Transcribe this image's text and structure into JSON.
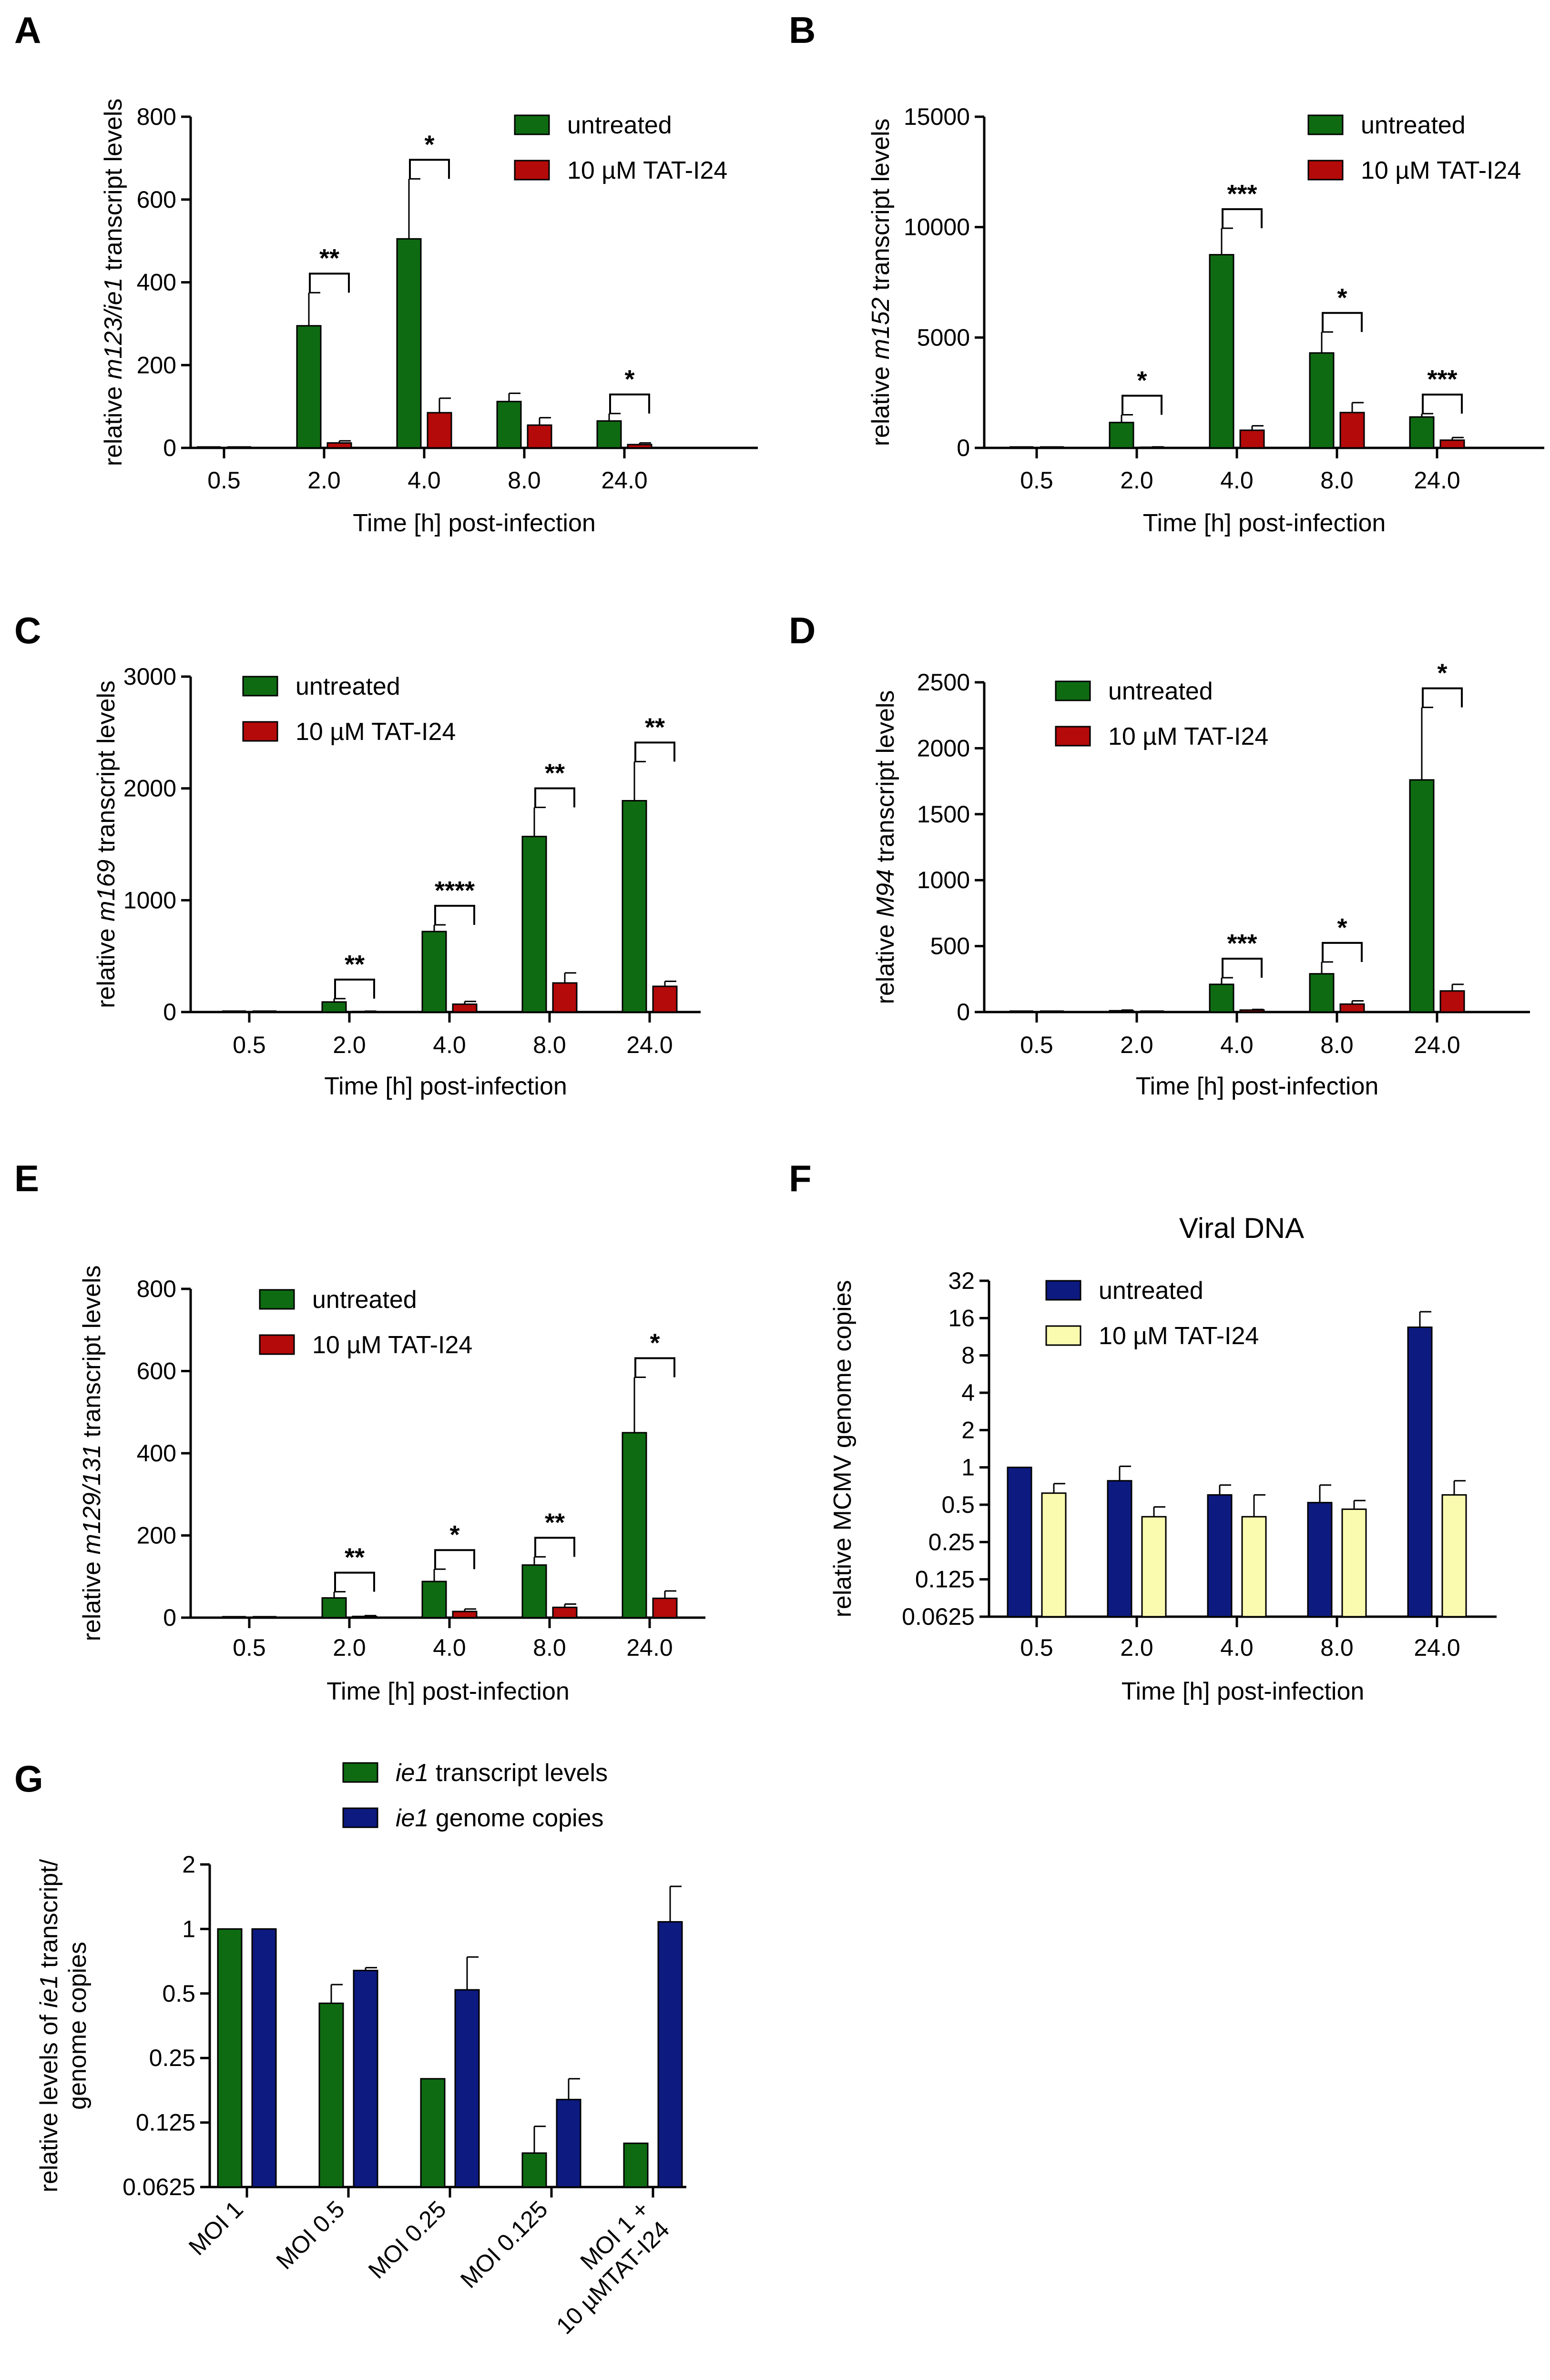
{
  "colors": {
    "untreated_green": "#0f6b12",
    "tat_red": "#b40a0a",
    "navy": "#0d1a80",
    "pale_yellow": "#fbfbb0",
    "axis": "#000000"
  },
  "chart_data": [
    {
      "panel": "A",
      "type": "bar",
      "title": "",
      "ylabel": {
        "pre": "relative ",
        "italic": "m123/ie1",
        "post": " transcript levels"
      },
      "xlabel": "Time [h] post-infection",
      "categories": [
        "0.5",
        "2.0",
        "4.0",
        "8.0",
        "24.0"
      ],
      "yscale": "linear",
      "ylim": [
        0,
        800
      ],
      "yticks": [
        "0",
        "200",
        "400",
        "600",
        "800"
      ],
      "legend": [
        "untreated",
        "10 µM TAT-I24"
      ],
      "series": [
        {
          "name": "untreated",
          "values": [
            0,
            295,
            505,
            112,
            65
          ],
          "errors": [
            0,
            80,
            145,
            20,
            18
          ]
        },
        {
          "name": "10 µM TAT-I24",
          "values": [
            0,
            12,
            85,
            55,
            8
          ],
          "errors": [
            0,
            5,
            35,
            18,
            4
          ]
        }
      ],
      "significance": [
        {
          "category": "2.0",
          "label": "**"
        },
        {
          "category": "4.0",
          "label": "*"
        },
        {
          "category": "24.0",
          "label": "*"
        }
      ]
    },
    {
      "panel": "B",
      "type": "bar",
      "title": "",
      "ylabel": {
        "pre": "relative ",
        "italic": "m152",
        "post": " transcript levels"
      },
      "xlabel": "Time [h] post-infection",
      "categories": [
        "0.5",
        "2.0",
        "4.0",
        "8.0",
        "24.0"
      ],
      "yscale": "linear",
      "ylim": [
        0,
        15000
      ],
      "yticks": [
        "0",
        "5000",
        "10000",
        "15000"
      ],
      "legend": [
        "untreated",
        "10 µM TAT-I24"
      ],
      "series": [
        {
          "name": "untreated",
          "values": [
            0,
            1150,
            8750,
            4300,
            1400
          ],
          "errors": [
            0,
            350,
            1200,
            950,
            150
          ]
        },
        {
          "name": "10 µM TAT-I24",
          "values": [
            0,
            30,
            800,
            1600,
            350
          ],
          "errors": [
            0,
            15,
            200,
            450,
            120
          ]
        }
      ],
      "significance": [
        {
          "category": "2.0",
          "label": "*"
        },
        {
          "category": "4.0",
          "label": "***"
        },
        {
          "category": "8.0",
          "label": "*"
        },
        {
          "category": "24.0",
          "label": "***"
        }
      ]
    },
    {
      "panel": "C",
      "type": "bar",
      "title": "",
      "ylabel": {
        "pre": "relative ",
        "italic": "m169",
        "post": " transcript levels"
      },
      "xlabel": "Time [h] post-infection",
      "categories": [
        "0.5",
        "2.0",
        "4.0",
        "8.0",
        "24.0"
      ],
      "yscale": "linear",
      "ylim": [
        0,
        3000
      ],
      "yticks": [
        "0",
        "1000",
        "2000",
        "3000"
      ],
      "legend": [
        "untreated",
        "10 µM TAT-I24"
      ],
      "series": [
        {
          "name": "untreated",
          "values": [
            0,
            90,
            720,
            1570,
            1890
          ],
          "errors": [
            0,
            30,
            60,
            260,
            350
          ]
        },
        {
          "name": "10 µM TAT-I24",
          "values": [
            0,
            5,
            70,
            260,
            230
          ],
          "errors": [
            0,
            3,
            25,
            90,
            45
          ]
        }
      ],
      "significance": [
        {
          "category": "2.0",
          "label": "**"
        },
        {
          "category": "4.0",
          "label": "****"
        },
        {
          "category": "8.0",
          "label": "**"
        },
        {
          "category": "24.0",
          "label": "**"
        }
      ]
    },
    {
      "panel": "D",
      "type": "bar",
      "title": "",
      "ylabel": {
        "pre": "relative ",
        "italic": "M94",
        "post": " transcript levels"
      },
      "xlabel": "Time [h] post-infection",
      "categories": [
        "0.5",
        "2.0",
        "4.0",
        "8.0",
        "24.0"
      ],
      "yscale": "linear",
      "ylim": [
        0,
        2500
      ],
      "yticks": [
        "0",
        "500",
        "1000",
        "1500",
        "2000",
        "2500"
      ],
      "legend": [
        "untreated",
        "10 µM TAT-I24"
      ],
      "series": [
        {
          "name": "untreated",
          "values": [
            0,
            10,
            210,
            290,
            1760
          ],
          "errors": [
            0,
            5,
            50,
            90,
            550
          ]
        },
        {
          "name": "10 µM TAT-I24",
          "values": [
            0,
            0,
            15,
            60,
            160
          ],
          "errors": [
            0,
            0,
            5,
            25,
            50
          ]
        }
      ],
      "significance": [
        {
          "category": "4.0",
          "label": "***"
        },
        {
          "category": "8.0",
          "label": "*"
        },
        {
          "category": "24.0",
          "label": "*"
        }
      ]
    },
    {
      "panel": "E",
      "type": "bar",
      "title": "",
      "ylabel": {
        "pre": "relative ",
        "italic": "m129/131",
        "post": " transcript levels"
      },
      "xlabel": "Time [h] post-infection",
      "categories": [
        "0.5",
        "2.0",
        "4.0",
        "8.0",
        "24.0"
      ],
      "yscale": "linear",
      "ylim": [
        0,
        800
      ],
      "yticks": [
        "0",
        "200",
        "400",
        "600",
        "800"
      ],
      "legend": [
        "untreated",
        "10 µM TAT-I24"
      ],
      "series": [
        {
          "name": "untreated",
          "values": [
            0,
            48,
            88,
            128,
            450
          ],
          "errors": [
            0,
            15,
            30,
            20,
            135
          ]
        },
        {
          "name": "10 µM TAT-I24",
          "values": [
            0,
            3,
            15,
            25,
            47
          ],
          "errors": [
            0,
            2,
            6,
            8,
            18
          ]
        }
      ],
      "significance": [
        {
          "category": "2.0",
          "label": "**"
        },
        {
          "category": "4.0",
          "label": "*"
        },
        {
          "category": "8.0",
          "label": "**"
        },
        {
          "category": "24.0",
          "label": "*"
        }
      ]
    },
    {
      "panel": "F",
      "type": "bar",
      "title": "Viral DNA",
      "ylabel": {
        "pre": "relative MCMV genome copies",
        "italic": "",
        "post": ""
      },
      "xlabel": "Time [h] post-infection",
      "categories": [
        "0.5",
        "2.0",
        "4.0",
        "8.0",
        "24.0"
      ],
      "yscale": "log2",
      "ylim": [
        0.0625,
        32
      ],
      "yticks": [
        "0.0625",
        "0.125",
        "0.25",
        "0.5",
        "1",
        "2",
        "4",
        "8",
        "16",
        "32"
      ],
      "legend": [
        "untreated",
        "10 µM TAT-I24"
      ],
      "series": [
        {
          "name": "untreated",
          "values": [
            1.0,
            0.78,
            0.6,
            0.52,
            13.5
          ],
          "errors": [
            0,
            0.24,
            0.12,
            0.2,
            4.5
          ]
        },
        {
          "name": "10 µM TAT-I24",
          "values": [
            0.62,
            0.4,
            0.4,
            0.46,
            0.6
          ],
          "errors": [
            0.12,
            0.08,
            0.2,
            0.08,
            0.18
          ]
        }
      ],
      "significance": []
    },
    {
      "panel": "G",
      "type": "bar",
      "title": "",
      "ylabel": {
        "line1": "relative levels of ",
        "italic": "ie1",
        "line1_post": " transcript/",
        "line2": "genome copies"
      },
      "xlabel": "",
      "categories": [
        "MOI 1",
        "MOI 0.5",
        "MOI 0.25",
        "MOI 0.125",
        "MOI 1 +\n10 µMTAT-I24"
      ],
      "yscale": "log2",
      "ylim": [
        0.0625,
        2
      ],
      "yticks": [
        "0.0625",
        "0.125",
        "0.25",
        "0.5",
        "1",
        "2"
      ],
      "legend_items": [
        {
          "italic": "ie1",
          "rest": " transcript levels"
        },
        {
          "italic": "ie1",
          "rest": " genome copies"
        }
      ],
      "series": [
        {
          "name": "ie1 transcript levels",
          "values": [
            1.0,
            0.45,
            0.2,
            0.09,
            0.1
          ],
          "errors": [
            0,
            0.1,
            0,
            0.03,
            0
          ]
        },
        {
          "name": "ie1 genome copies",
          "values": [
            1.0,
            0.64,
            0.52,
            0.16,
            1.08
          ],
          "errors": [
            0,
            0.02,
            0.22,
            0.04,
            0.5
          ]
        }
      ],
      "significance": []
    }
  ]
}
